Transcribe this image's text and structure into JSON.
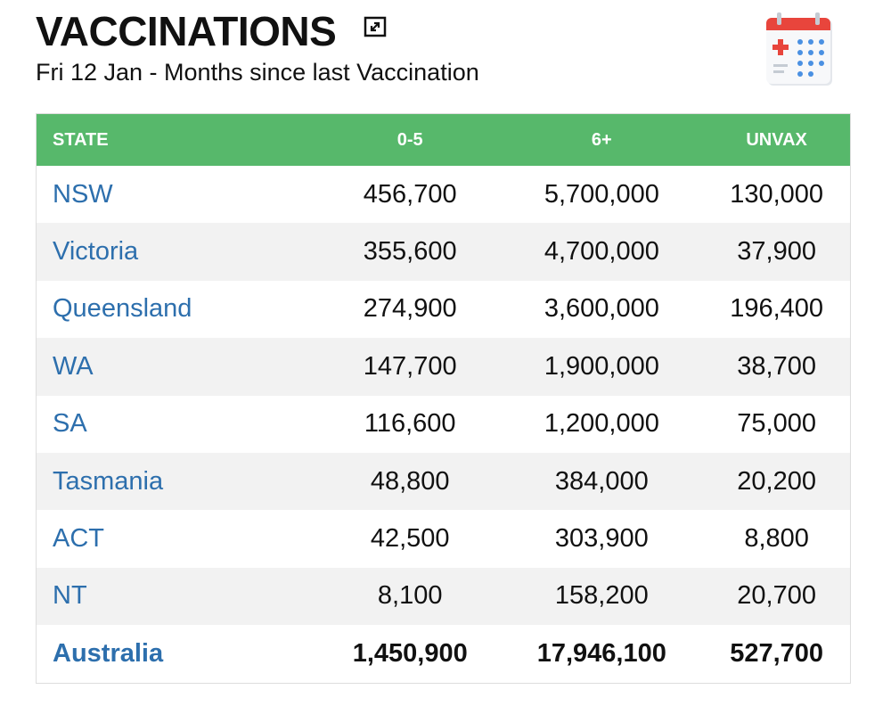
{
  "header": {
    "title": "VACCINATIONS",
    "subtitle": "Fri 12 Jan - Months since last Vaccination"
  },
  "table": {
    "columns": [
      "STATE",
      "0-5",
      "6+",
      "UNVAX"
    ],
    "rows": [
      [
        "NSW",
        "456,700",
        "5,700,000",
        "130,000"
      ],
      [
        "Victoria",
        "355,600",
        "4,700,000",
        "37,900"
      ],
      [
        "Queensland",
        "274,900",
        "3,600,000",
        "196,400"
      ],
      [
        "WA",
        "147,700",
        "1,900,000",
        "38,700"
      ],
      [
        "SA",
        "116,600",
        "1,200,000",
        "75,000"
      ],
      [
        "Tasmania",
        "48,800",
        "384,000",
        "20,200"
      ],
      [
        "ACT",
        "42,500",
        "303,900",
        "8,800"
      ],
      [
        "NT",
        "8,100",
        "158,200",
        "20,700"
      ]
    ],
    "total": [
      "Australia",
      "1,450,900",
      "17,946,100",
      "527,700"
    ]
  }
}
